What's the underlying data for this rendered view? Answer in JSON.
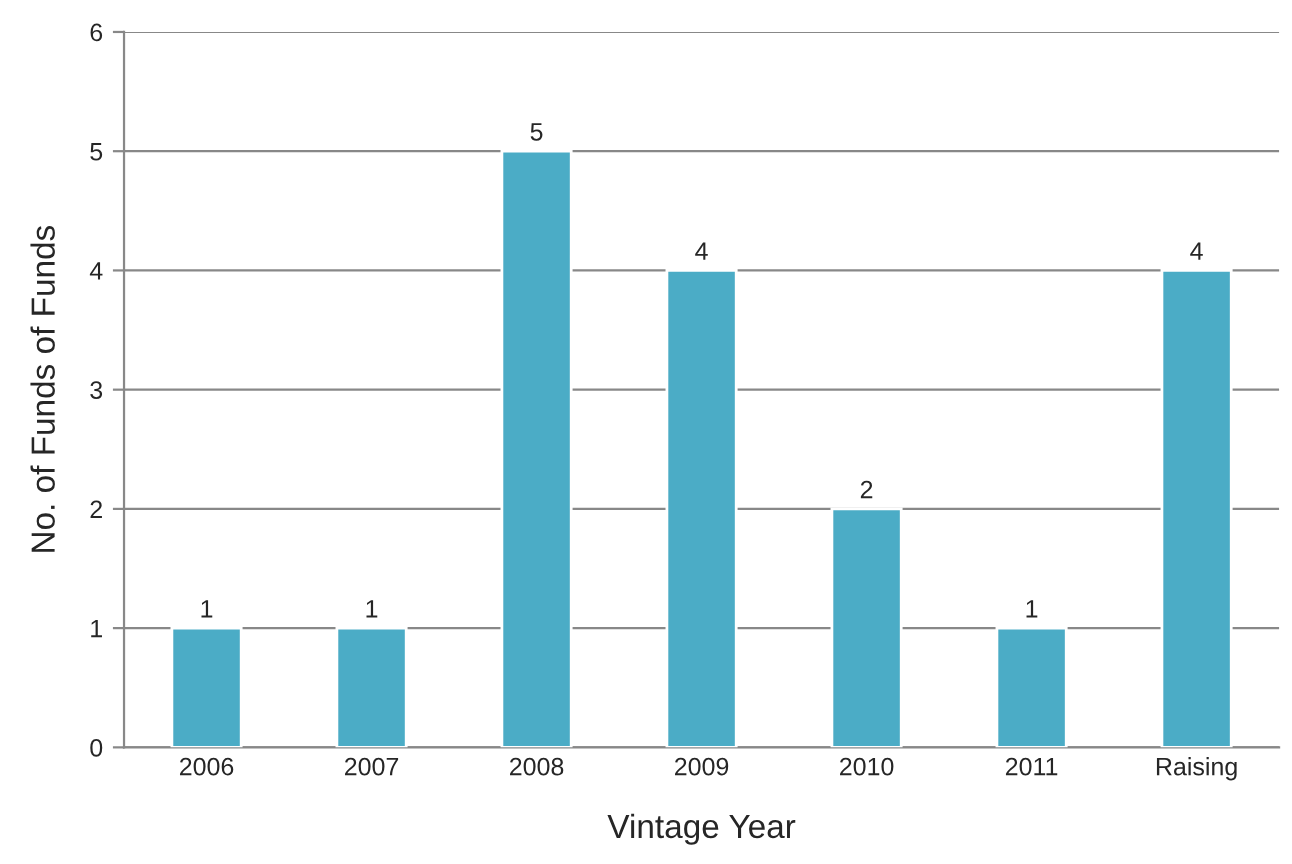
{
  "chart_data": {
    "type": "bar",
    "xlabel": "Vintage Year",
    "ylabel": "No. of Funds of Funds",
    "categories": [
      "2006",
      "2007",
      "2008",
      "2009",
      "2010",
      "2011",
      "Raising"
    ],
    "values": [
      1,
      1,
      5,
      4,
      2,
      1,
      4
    ],
    "color": "#4bacc6",
    "ylim": [
      0,
      6
    ],
    "yticks": [
      0,
      1,
      2,
      3,
      4,
      5,
      6
    ],
    "grid": "y",
    "data_labels": true,
    "legend": false
  }
}
